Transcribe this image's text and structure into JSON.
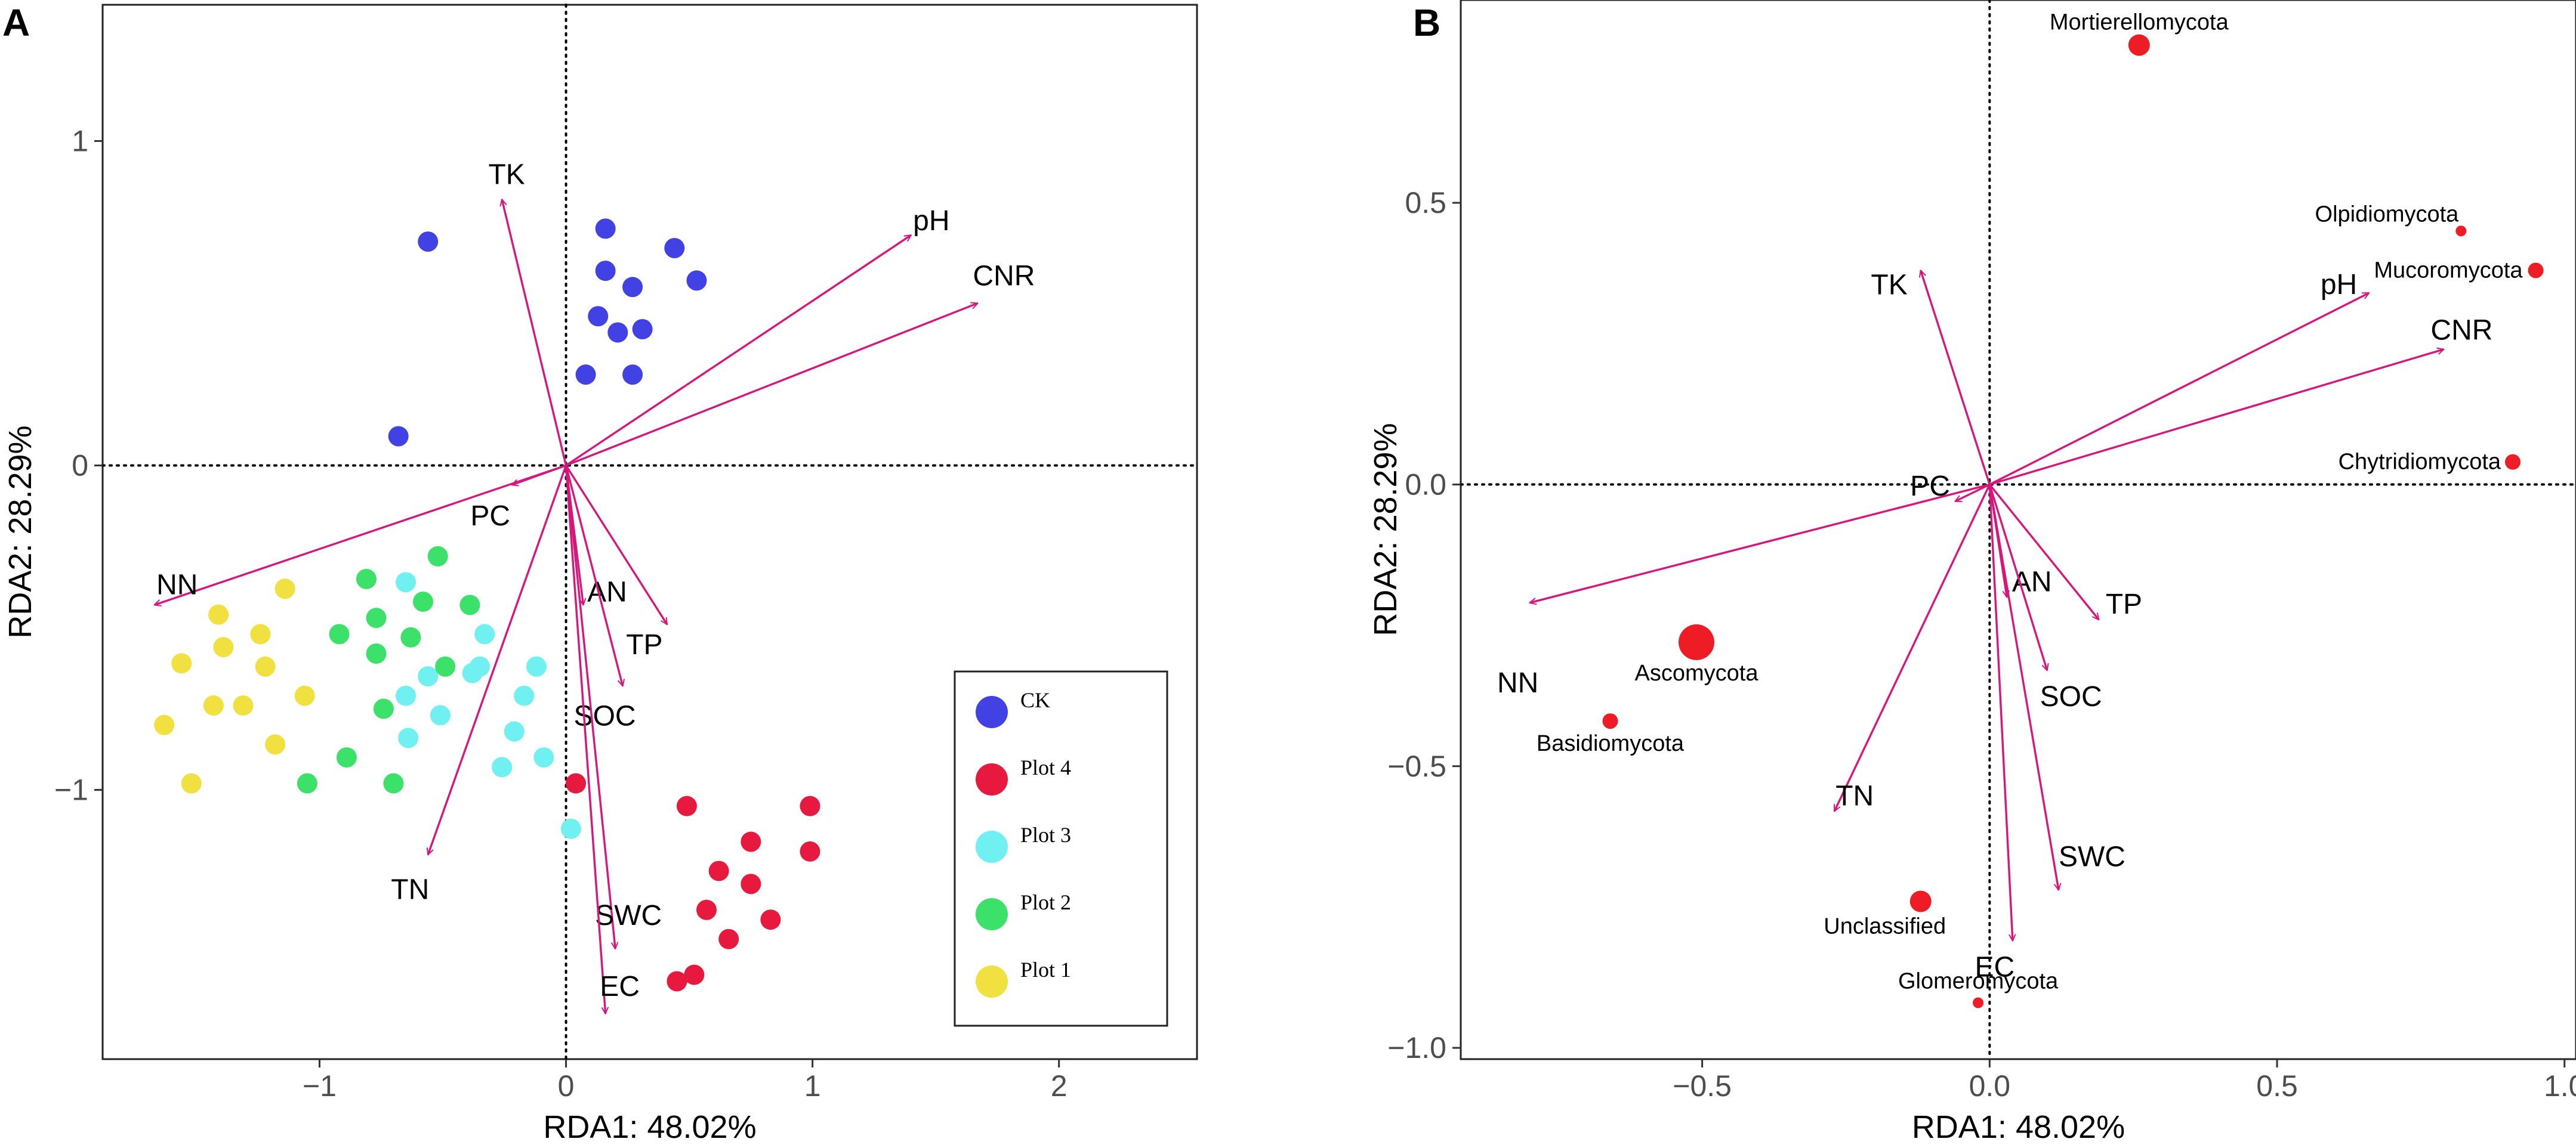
{
  "colors": {
    "vector": "#d6167c",
    "taxa": "#ee1c25",
    "frame": "#222222",
    "zero_line": "#000000"
  },
  "chart_data": [
    {
      "panel": "A",
      "type": "scatter",
      "title": "",
      "xlabel": "RDA1: 48.02%",
      "ylabel": "RDA2: 28.29%",
      "xlim": [
        -1.88,
        2.56
      ],
      "ylim": [
        -1.83,
        1.42
      ],
      "xticks": [
        -1,
        0,
        1,
        2
      ],
      "yticks": [
        -1,
        0,
        1
      ],
      "xtick_labels": [
        "−1",
        "0",
        "1",
        "2"
      ],
      "ytick_labels": [
        "−1",
        "0",
        "1"
      ],
      "grid": false,
      "legend_position": "bottom-right",
      "groups": [
        {
          "name": "CK",
          "color": "#4141e4",
          "points": [
            [
              -0.56,
              0.69
            ],
            [
              0.16,
              0.73
            ],
            [
              0.44,
              0.67
            ],
            [
              0.16,
              0.6
            ],
            [
              0.27,
              0.55
            ],
            [
              0.53,
              0.57
            ],
            [
              0.13,
              0.46
            ],
            [
              0.31,
              0.42
            ],
            [
              0.21,
              0.41
            ],
            [
              0.08,
              0.28
            ],
            [
              0.27,
              0.28
            ],
            [
              -0.68,
              0.09
            ]
          ]
        },
        {
          "name": "Plot 4",
          "color": "#e8193f",
          "points": [
            [
              0.04,
              -0.98
            ],
            [
              0.49,
              -1.05
            ],
            [
              0.99,
              -1.05
            ],
            [
              0.75,
              -1.16
            ],
            [
              0.99,
              -1.19
            ],
            [
              0.62,
              -1.25
            ],
            [
              0.75,
              -1.29
            ],
            [
              0.57,
              -1.37
            ],
            [
              0.83,
              -1.4
            ],
            [
              0.66,
              -1.46
            ],
            [
              0.52,
              -1.57
            ],
            [
              0.45,
              -1.59
            ]
          ]
        },
        {
          "name": "Plot 3",
          "color": "#70f0f0",
          "points": [
            [
              -0.65,
              -0.36
            ],
            [
              -0.33,
              -0.52
            ],
            [
              -0.35,
              -0.62
            ],
            [
              -0.12,
              -0.62
            ],
            [
              -0.56,
              -0.65
            ],
            [
              -0.38,
              -0.64
            ],
            [
              -0.17,
              -0.71
            ],
            [
              -0.51,
              -0.77
            ],
            [
              -0.65,
              -0.71
            ],
            [
              -0.21,
              -0.82
            ],
            [
              -0.64,
              -0.84
            ],
            [
              -0.09,
              -0.9
            ],
            [
              -0.26,
              -0.93
            ],
            [
              0.02,
              -1.12
            ]
          ]
        },
        {
          "name": "Plot 2",
          "color": "#3be168",
          "points": [
            [
              -0.52,
              -0.28
            ],
            [
              -0.81,
              -0.35
            ],
            [
              -0.58,
              -0.42
            ],
            [
              -0.39,
              -0.43
            ],
            [
              -0.77,
              -0.47
            ],
            [
              -0.92,
              -0.52
            ],
            [
              -0.63,
              -0.53
            ],
            [
              -0.77,
              -0.58
            ],
            [
              -0.49,
              -0.62
            ],
            [
              -0.74,
              -0.75
            ],
            [
              -0.89,
              -0.9
            ],
            [
              -1.05,
              -0.98
            ],
            [
              -0.7,
              -0.98
            ]
          ]
        },
        {
          "name": "Plot 1",
          "color": "#f0e040",
          "points": [
            [
              -1.14,
              -0.38
            ],
            [
              -1.41,
              -0.46
            ],
            [
              -1.24,
              -0.52
            ],
            [
              -1.39,
              -0.56
            ],
            [
              -1.56,
              -0.61
            ],
            [
              -1.22,
              -0.62
            ],
            [
              -1.06,
              -0.71
            ],
            [
              -1.43,
              -0.74
            ],
            [
              -1.31,
              -0.74
            ],
            [
              -1.63,
              -0.8
            ],
            [
              -1.18,
              -0.86
            ],
            [
              -1.52,
              -0.98
            ]
          ]
        }
      ],
      "vectors": [
        {
          "name": "TK",
          "x": -0.26,
          "y": 0.82
        },
        {
          "name": "pH",
          "x": 1.4,
          "y": 0.71
        },
        {
          "name": "CNR",
          "x": 1.67,
          "y": 0.5
        },
        {
          "name": "PC",
          "x": -0.22,
          "y": -0.06
        },
        {
          "name": "NN",
          "x": -1.67,
          "y": -0.43
        },
        {
          "name": "AN",
          "x": 0.07,
          "y": -0.43
        },
        {
          "name": "TP",
          "x": 0.41,
          "y": -0.49
        },
        {
          "name": "SOC",
          "x": 0.23,
          "y": -0.68
        },
        {
          "name": "TN",
          "x": -0.56,
          "y": -1.2
        },
        {
          "name": "SWC",
          "x": 0.2,
          "y": -1.49
        },
        {
          "name": "EC",
          "x": 0.16,
          "y": -1.69
        }
      ]
    },
    {
      "panel": "B",
      "type": "scatter",
      "title": "",
      "xlabel": "RDA1: 48.02%",
      "ylabel": "RDA2: 28.29%",
      "xlim": [
        -0.92,
        1.02
      ],
      "ylim": [
        -1.02,
        0.86
      ],
      "xticks": [
        -0.5,
        0.0,
        0.5,
        1.0
      ],
      "yticks": [
        -1.0,
        -0.5,
        0.0,
        0.5
      ],
      "xtick_labels": [
        "−0.5",
        "0.0",
        "0.5",
        "1.0"
      ],
      "ytick_labels": [
        "−1.0",
        "−0.5",
        "0.0",
        "0.5"
      ],
      "grid": false,
      "taxa": [
        {
          "name": "Mortierellomycota",
          "x": 0.26,
          "y": 0.78,
          "size": "medium"
        },
        {
          "name": "Olpidiomycota",
          "x": 0.82,
          "y": 0.45,
          "size": "tiny"
        },
        {
          "name": "Mucoromycota",
          "x": 0.95,
          "y": 0.38,
          "size": "small"
        },
        {
          "name": "Chytridiomycota",
          "x": 0.91,
          "y": 0.04,
          "size": "small"
        },
        {
          "name": "Ascomycota",
          "x": -0.51,
          "y": -0.28,
          "size": "large"
        },
        {
          "name": "Basidiomycota",
          "x": -0.66,
          "y": -0.42,
          "size": "small"
        },
        {
          "name": "Unclassified",
          "x": -0.12,
          "y": -0.74,
          "size": "medium"
        },
        {
          "name": "Glomeromycota",
          "x": -0.02,
          "y": -0.92,
          "size": "tiny"
        }
      ],
      "vectors": [
        {
          "name": "TK",
          "x": -0.12,
          "y": 0.38
        },
        {
          "name": "pH",
          "x": 0.66,
          "y": 0.34
        },
        {
          "name": "CNR",
          "x": 0.79,
          "y": 0.24
        },
        {
          "name": "PC",
          "x": -0.06,
          "y": -0.03
        },
        {
          "name": "NN",
          "x": -0.8,
          "y": -0.21
        },
        {
          "name": "AN",
          "x": 0.03,
          "y": -0.2
        },
        {
          "name": "TP",
          "x": 0.19,
          "y": -0.24
        },
        {
          "name": "SOC",
          "x": 0.1,
          "y": -0.33
        },
        {
          "name": "TN",
          "x": -0.27,
          "y": -0.58
        },
        {
          "name": "SWC",
          "x": 0.12,
          "y": -0.72
        },
        {
          "name": "EC",
          "x": 0.04,
          "y": -0.81
        }
      ]
    }
  ]
}
